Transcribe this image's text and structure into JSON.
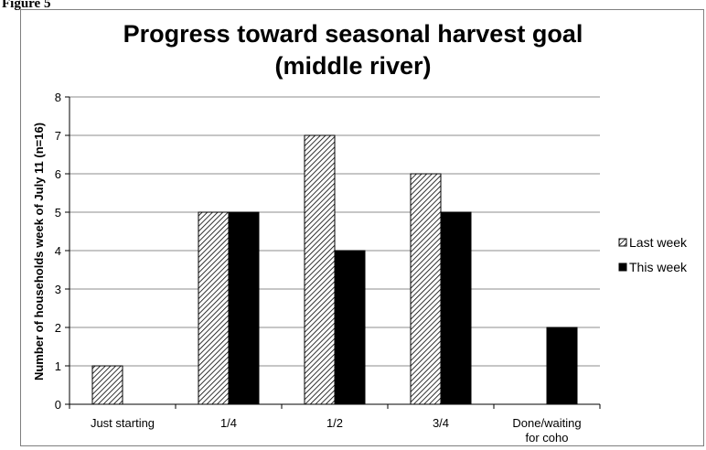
{
  "figure_label": "Figure 5",
  "chart_data": {
    "type": "bar",
    "title": [
      "Progress toward seasonal harvest goal",
      "(middle river)"
    ],
    "ylabel": "Number of households week of July 11 (n=16)",
    "xlabel": "",
    "categories": [
      [
        "Just starting"
      ],
      [
        "1/4"
      ],
      [
        "1/2"
      ],
      [
        "3/4"
      ],
      [
        "Done/waiting",
        "for coho"
      ]
    ],
    "ylim": [
      0,
      8
    ],
    "yticks": [
      "0",
      "1",
      "2",
      "3",
      "4",
      "5",
      "6",
      "7",
      "8"
    ],
    "grid": true,
    "legend_position": "right",
    "series": [
      {
        "name": "Last week",
        "values": [
          1,
          5,
          7,
          6,
          0
        ],
        "pattern": "hatched"
      },
      {
        "name": "This week",
        "values": [
          0,
          5,
          4,
          5,
          2
        ],
        "pattern": "solid-black"
      }
    ]
  }
}
